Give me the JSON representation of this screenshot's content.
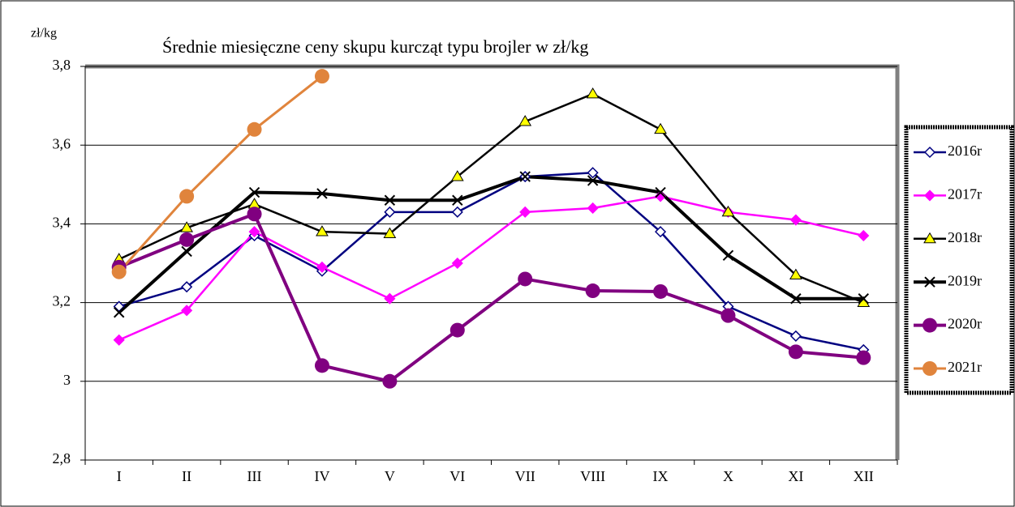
{
  "chart_data": {
    "type": "line",
    "title": "Średnie miesięczne ceny skupu kurcząt typu brojler w zł/kg",
    "y_label": "zł/kg",
    "categories": [
      "I",
      "II",
      "III",
      "IV",
      "V",
      "VI",
      "VII",
      "VIII",
      "IX",
      "X",
      "XI",
      "XII"
    ],
    "ylim": [
      2.8,
      3.8
    ],
    "yticks": [
      {
        "value": 2.8,
        "label": "2,8"
      },
      3,
      {
        "value": 3.2,
        "label": "3,2"
      },
      {
        "value": 3.4,
        "label": "3,4"
      },
      {
        "value": 3.6,
        "label": "3,6"
      },
      {
        "value": 3.8,
        "label": "3,8"
      }
    ],
    "grid": true,
    "legend": "right",
    "series": [
      {
        "name": "2016r",
        "color": "#000080",
        "marker": "diamond-open",
        "values": [
          3.19,
          3.24,
          3.37,
          3.28,
          3.43,
          3.43,
          3.52,
          3.53,
          3.38,
          3.19,
          3.115,
          3.08
        ]
      },
      {
        "name": "2017r",
        "color": "#ff00ff",
        "marker": "diamond",
        "values": [
          3.105,
          3.18,
          3.38,
          3.29,
          3.21,
          3.3,
          3.43,
          3.44,
          3.47,
          3.43,
          3.41,
          3.37
        ]
      },
      {
        "name": "2018r",
        "color": "#000000",
        "marker": "triangle",
        "values": [
          3.31,
          3.39,
          3.45,
          3.38,
          3.375,
          3.52,
          3.66,
          3.73,
          3.64,
          3.43,
          3.27,
          3.2
        ]
      },
      {
        "name": "2019r",
        "color": "#000000",
        "marker": "x",
        "values": [
          3.175,
          3.33,
          3.48,
          3.477,
          3.46,
          3.46,
          3.52,
          3.51,
          3.48,
          3.32,
          3.21,
          3.21
        ]
      },
      {
        "name": "2020r",
        "color": "#800080",
        "marker": "circle",
        "values": [
          3.29,
          3.36,
          3.425,
          3.04,
          3.0,
          3.13,
          3.26,
          3.23,
          3.228,
          3.167,
          3.075,
          3.06
        ]
      },
      {
        "name": "2021r",
        "color": "#e0843c",
        "marker": "circle",
        "values": [
          3.278,
          3.47,
          3.64,
          3.775,
          null,
          null,
          null,
          null,
          null,
          null,
          null,
          null
        ]
      }
    ]
  }
}
